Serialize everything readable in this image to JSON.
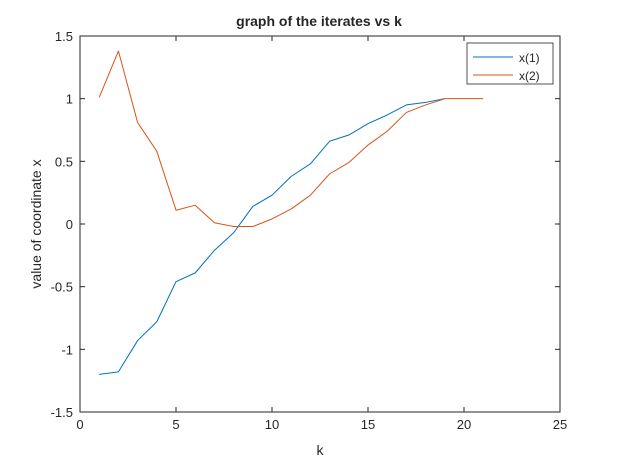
{
  "chart_data": {
    "type": "line",
    "title": "graph of the iterates vs k",
    "xlabel": "k",
    "ylabel": "value of coordinate x",
    "xlim": [
      0,
      25
    ],
    "ylim": [
      -1.5,
      1.5
    ],
    "xticks": [
      0,
      5,
      10,
      15,
      20,
      25
    ],
    "yticks": [
      -1.5,
      -1,
      -0.5,
      0,
      0.5,
      1,
      1.5
    ],
    "xtick_labels": [
      "0",
      "5",
      "10",
      "15",
      "20",
      "25"
    ],
    "ytick_labels": [
      "-1.5",
      "-1",
      "-0.5",
      "0",
      "0.5",
      "1",
      "1.5"
    ],
    "grid": false,
    "legend_position": "top-right",
    "series": [
      {
        "name": "x(1)",
        "color": "#0072BD",
        "x": [
          1,
          2,
          3,
          4,
          5,
          6,
          7,
          8,
          9,
          10,
          11,
          12,
          13,
          14,
          15,
          16,
          17,
          18,
          19
        ],
        "values": [
          -1.2,
          -1.18,
          -0.93,
          -0.78,
          -0.46,
          -0.39,
          -0.21,
          -0.07,
          0.14,
          0.23,
          0.38,
          0.48,
          0.66,
          0.71,
          0.8,
          0.87,
          0.95,
          0.97,
          1.0
        ]
      },
      {
        "name": "x(2)",
        "color": "#D95319",
        "x": [
          1,
          2,
          3,
          4,
          5,
          6,
          7,
          8,
          9,
          10,
          11,
          12,
          13,
          14,
          15,
          16,
          17,
          18,
          19,
          20,
          21
        ],
        "values": [
          1.01,
          1.38,
          0.81,
          0.58,
          0.11,
          0.15,
          0.01,
          -0.02,
          -0.02,
          0.04,
          0.12,
          0.23,
          0.4,
          0.49,
          0.63,
          0.74,
          0.89,
          0.95,
          1.0,
          1.0,
          1.0
        ]
      }
    ]
  }
}
